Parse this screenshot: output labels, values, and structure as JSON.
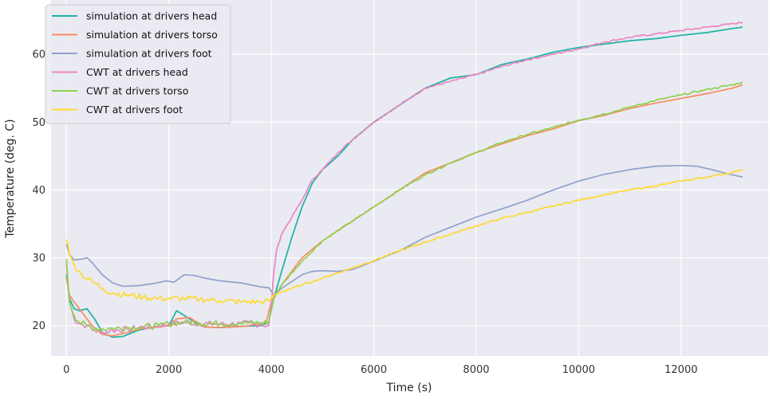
{
  "chart_data": {
    "type": "line",
    "title": "",
    "xlabel": "Time (s)",
    "ylabel": "Temperature (deg. C)",
    "xlim": [
      -300,
      13700
    ],
    "ylim": [
      15.5,
      68
    ],
    "xticks": [
      0,
      2000,
      4000,
      6000,
      8000,
      10000,
      12000
    ],
    "yticks": [
      20,
      30,
      40,
      50,
      60
    ],
    "grid": true,
    "legend_position": "top-left",
    "background_color": "#eaeaf2",
    "series": [
      {
        "name": "simulation at drivers head",
        "color": "#1ab3a6",
        "x": [
          0,
          60,
          150,
          250,
          400,
          550,
          700,
          900,
          1100,
          1400,
          1700,
          2000,
          2150,
          2300,
          2500,
          2700,
          3000,
          3400,
          3800,
          3950,
          4050,
          4200,
          4400,
          4600,
          4800,
          5000,
          5300,
          5600,
          6000,
          6500,
          7000,
          7500,
          8000,
          8500,
          9000,
          9500,
          10000,
          10500,
          11000,
          11500,
          12000,
          12500,
          13000,
          13200
        ],
        "y": [
          27.5,
          24.0,
          22.5,
          22.2,
          22.5,
          21.0,
          19.0,
          18.3,
          18.4,
          19.3,
          19.8,
          20.0,
          22.2,
          21.5,
          20.5,
          19.8,
          19.7,
          19.9,
          20.0,
          20.5,
          24.0,
          28.0,
          33.0,
          37.5,
          41.0,
          43.0,
          45.0,
          47.5,
          50.0,
          52.5,
          55.0,
          56.5,
          57.0,
          58.5,
          59.3,
          60.3,
          61.0,
          61.5,
          62.0,
          62.3,
          62.8,
          63.2,
          63.8,
          64.0
        ]
      },
      {
        "name": "simulation at drivers torso",
        "color": "#f78c62",
        "x": [
          0,
          60,
          150,
          300,
          500,
          700,
          900,
          1200,
          1500,
          1800,
          2000,
          2150,
          2400,
          2700,
          3000,
          3500,
          3900,
          4000,
          4200,
          4600,
          5000,
          5500,
          6000,
          6500,
          7000,
          7500,
          8000,
          8500,
          9000,
          9500,
          10000,
          10500,
          11000,
          11500,
          12000,
          12500,
          13000,
          13200
        ],
        "y": [
          27.0,
          24.5,
          23.5,
          22.0,
          20.0,
          18.7,
          18.5,
          19.0,
          19.6,
          19.8,
          20.0,
          21.0,
          21.2,
          19.8,
          19.7,
          19.9,
          20.5,
          23.5,
          26.0,
          30.0,
          32.5,
          35.0,
          37.5,
          40.0,
          42.5,
          44.0,
          45.5,
          46.8,
          48.0,
          49.0,
          50.2,
          51.0,
          52.0,
          52.8,
          53.5,
          54.2,
          55.0,
          55.5
        ]
      },
      {
        "name": "simulation at drivers foot",
        "color": "#8ea3cb",
        "x": [
          0,
          60,
          150,
          300,
          400,
          500,
          700,
          900,
          1100,
          1400,
          1700,
          1950,
          2100,
          2300,
          2500,
          2700,
          3000,
          3400,
          3800,
          3950,
          4050,
          4200,
          4400,
          4600,
          4800,
          5000,
          5300,
          5600,
          6000,
          6500,
          7000,
          7500,
          8000,
          8500,
          9000,
          9500,
          10000,
          10500,
          11000,
          11500,
          12000,
          12300,
          12600,
          12900,
          13200
        ],
        "y": [
          32.0,
          30.5,
          29.7,
          29.8,
          30.0,
          29.3,
          27.5,
          26.3,
          25.8,
          25.9,
          26.2,
          26.6,
          26.4,
          27.5,
          27.4,
          27.0,
          26.6,
          26.3,
          25.7,
          25.6,
          24.5,
          25.5,
          26.5,
          27.5,
          28.0,
          28.1,
          28.0,
          28.3,
          29.5,
          31.0,
          33.0,
          34.5,
          36.0,
          37.2,
          38.5,
          40.0,
          41.3,
          42.3,
          43.0,
          43.5,
          43.6,
          43.5,
          43.0,
          42.4,
          41.9
        ]
      },
      {
        "name": "CWT at drivers head",
        "color": "#ea86c1",
        "x": [
          0,
          60,
          150,
          250,
          400,
          550,
          700,
          900,
          1200,
          1500,
          1800,
          2000,
          2300,
          2600,
          3000,
          3400,
          3800,
          3950,
          4000,
          4050,
          4100,
          4200,
          4400,
          4600,
          4800,
          5000,
          5300,
          5600,
          6000,
          6500,
          7000,
          7500,
          8000,
          8500,
          9000,
          9500,
          10000,
          10500,
          11000,
          11500,
          12000,
          12500,
          13000,
          13200
        ],
        "y": [
          29.0,
          23.5,
          21.0,
          20.3,
          20.0,
          19.3,
          19.0,
          19.3,
          19.5,
          19.8,
          20.0,
          20.2,
          20.5,
          20.3,
          20.2,
          20.3,
          20.2,
          20.0,
          23.0,
          28.0,
          31.0,
          33.5,
          36.0,
          38.5,
          41.5,
          43.0,
          45.5,
          47.5,
          50.0,
          52.5,
          55.0,
          56.0,
          57.0,
          58.2,
          59.2,
          60.0,
          60.8,
          61.8,
          62.5,
          63.0,
          63.5,
          64.0,
          64.5,
          64.7
        ]
      },
      {
        "name": "CWT at drivers torso",
        "color": "#8fd14f",
        "x": [
          0,
          60,
          150,
          250,
          400,
          550,
          700,
          900,
          1200,
          1500,
          1800,
          2000,
          2300,
          2600,
          3000,
          3400,
          3800,
          3950,
          4050,
          4200,
          4600,
          5000,
          5500,
          6000,
          6500,
          7000,
          7500,
          8000,
          8500,
          9000,
          9500,
          10000,
          10500,
          11000,
          11500,
          12000,
          12500,
          13000,
          13200
        ],
        "y": [
          29.8,
          23.5,
          21.5,
          20.5,
          20.0,
          19.6,
          19.5,
          19.6,
          19.7,
          19.8,
          20.0,
          20.3,
          20.5,
          20.4,
          20.3,
          20.4,
          20.4,
          20.5,
          24.0,
          26.0,
          29.5,
          32.5,
          35.0,
          37.5,
          40.0,
          42.2,
          44.0,
          45.5,
          47.0,
          48.2,
          49.2,
          50.3,
          51.2,
          52.2,
          53.2,
          54.0,
          54.8,
          55.5,
          55.9
        ]
      },
      {
        "name": "CWT at drivers foot",
        "color": "#ffd92f",
        "x": [
          0,
          60,
          150,
          300,
          500,
          700,
          900,
          1200,
          1500,
          1800,
          2000,
          2300,
          2600,
          3000,
          3400,
          3800,
          3950,
          4050,
          4200,
          4600,
          5000,
          5500,
          6000,
          6500,
          7000,
          7500,
          8000,
          8500,
          9000,
          9500,
          10000,
          10500,
          11000,
          11500,
          12000,
          12500,
          13000,
          13200
        ],
        "y": [
          32.7,
          30.5,
          29.0,
          27.5,
          26.5,
          25.5,
          24.8,
          24.5,
          24.2,
          24.0,
          24.0,
          24.0,
          23.9,
          23.7,
          23.5,
          23.5,
          23.6,
          24.5,
          25.0,
          26.0,
          27.0,
          28.3,
          29.6,
          31.0,
          32.3,
          33.5,
          34.7,
          35.8,
          36.7,
          37.6,
          38.5,
          39.3,
          40.0,
          40.6,
          41.3,
          41.9,
          42.6,
          43.0
        ]
      }
    ]
  }
}
